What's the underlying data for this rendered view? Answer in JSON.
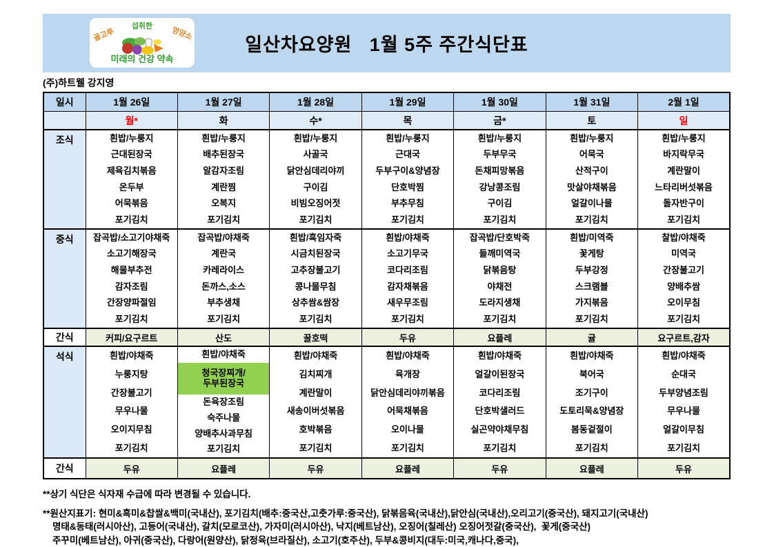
{
  "page": {
    "title": "일산차요양원   1월 5주 주간식단표",
    "subtitle": "(주)하트웰 강지영"
  },
  "logo": {
    "arc_left": "골고루",
    "arc_top": "섭취한",
    "arc_right": "영양소",
    "bottom": "미래의 건강 약속"
  },
  "colors": {
    "band": "#BDD7EE",
    "daybg": "#DEEBF7",
    "labelbg": "#DCE9F6",
    "snackbg": "#EBF1DE",
    "hl": "#92D050",
    "red": "#FF0000"
  },
  "table": {
    "corner_label": "일시",
    "dates": [
      "1월 26일",
      "1월 27일",
      "1월 28일",
      "1월 29일",
      "1월 30일",
      "1월 31일",
      "2월 1일"
    ],
    "days": [
      {
        "label": "월*",
        "red": true
      },
      {
        "label": "화",
        "red": false
      },
      {
        "label": "수*",
        "red": false
      },
      {
        "label": "목",
        "red": false
      },
      {
        "label": "금*",
        "red": false
      },
      {
        "label": "토",
        "red": false
      },
      {
        "label": "일",
        "red": true
      }
    ],
    "sections": [
      {
        "key": "breakfast",
        "label": "조식",
        "type": "meal",
        "days": [
          [
            "흰밥/누룽지",
            "근대된장국",
            "제육김치볶음",
            "온두부",
            "어묵볶음",
            "포기김치"
          ],
          [
            "흰밥/누룽지",
            "배추된장국",
            "알감자조림",
            "계란찜",
            "오복지",
            "포기김치"
          ],
          [
            "흰밥/누룽지",
            "사골국",
            "닭안심데리야끼",
            "구이김",
            "비빔오징어젓",
            "포기김치"
          ],
          [
            "흰밥/누룽지",
            "근대국",
            "두부구이&양념장",
            "단호박찜",
            "부추무침",
            "포기김치"
          ],
          [
            "흰밥/누룽지",
            "두부무국",
            "돈채피망볶음",
            "강낭콩조림",
            "구이김",
            "포기김치"
          ],
          [
            "흰밥/누룽지",
            "어묵국",
            "산적구이",
            "맛살야채볶음",
            "얼갈이나물",
            "포기김치"
          ],
          [
            "흰밥/누룽지",
            "바지락무국",
            "계란말이",
            "느타리버섯볶음",
            "돌자반구이",
            "포기김치"
          ]
        ]
      },
      {
        "key": "lunch",
        "label": "중식",
        "type": "meal",
        "days": [
          [
            "잡곡밥/소고기야채죽",
            "소고기해장국",
            "해물부추전",
            "감자조림",
            "간장양파절임",
            "포기김치"
          ],
          [
            "잡곡밥/야채죽",
            "계란국",
            "카레라이스",
            "돈까스,소스",
            "부추생채",
            "포기김치"
          ],
          [
            "흰밥/흑임자죽",
            "시금치된장국",
            "고추장불고기",
            "콩나물무침",
            "상추쌈&쌈장",
            "포기김치"
          ],
          [
            "흰밥/야채죽",
            "소고기무국",
            "코다리조림",
            "감자채볶음",
            "새우무조림",
            "포기김치"
          ],
          [
            "잡곡밥/단호박죽",
            "들깨미역국",
            "닭볶음탕",
            "야채전",
            "도라지생채",
            "포기김치"
          ],
          [
            "흰밥/미역죽",
            "꽃게탕",
            "두부강정",
            "스크램블",
            "가지볶음",
            "포기김치"
          ],
          [
            "찰밥/야채죽",
            "미역국",
            "간장불고기",
            "양배추쌈",
            "오이무침",
            "포기김치"
          ]
        ]
      },
      {
        "key": "snack-afternoon",
        "label": "간식",
        "type": "snack",
        "days": [
          "커피/요구르트",
          "산도",
          "꿀호떡",
          "두유",
          "요플레",
          "귤",
          "요구르트,감자"
        ]
      },
      {
        "key": "dinner",
        "label": "석식",
        "type": "meal",
        "days": [
          [
            "흰밥/야채죽",
            "누룽지탕",
            "간장불고기",
            "무우나물",
            "오이지무침",
            "포기김치"
          ],
          [
            "흰밥/야채죽",
            {
              "lines": [
                "청국장찌개/",
                "두부된장국"
              ],
              "highlight": true
            },
            "돈육장조림",
            "숙주나물",
            "양배추사과무침",
            "포기김치"
          ],
          [
            "흰밥/야채죽",
            "김치찌개",
            "계란말이",
            "새송이버섯볶음",
            "호박볶음",
            "포기김치"
          ],
          [
            "흰밥/야채죽",
            "육개장",
            "닭안심데리야끼볶음",
            "어묵채볶음",
            "오이나물",
            "포기김치"
          ],
          [
            "흰밥/야채죽",
            "얼갈이된장국",
            "코다리조림",
            "단호박샐러드",
            "실곤약야채무침",
            "포기김치"
          ],
          [
            "흰밥/야채죽",
            "북어국",
            "조기구이",
            "도토리묵&양념장",
            "봄동겉절이",
            "포기김치"
          ],
          [
            "흰밥/야채죽",
            "순대국",
            "두부양념조림",
            "무우나물",
            "얼갈이무침",
            "포기김치"
          ]
        ]
      },
      {
        "key": "snack-evening",
        "label": "간식",
        "type": "snack",
        "days": [
          "두유",
          "요플레",
          "두유",
          "요플레",
          "두유",
          "요플레",
          "두유"
        ]
      }
    ]
  },
  "footnotes": [
    "**상기 식단은 식자재 수급에 따라 변경될 수 있습니다.",
    "**원산지표기: 현미&흑미&찹쌀&백미(국내산), 포기김치(배추:중국산,고춧가루:중국산), 닭볶음육(국내산),닭안심(국내산),오리고기(중국산), 돼지고기(국내산)",
    "명태&동태(러시아산), 고등어(국내산), 갈치(모로코산), 가자미(러시아산), 낙지(베트남산), 오징어(칠레산) 오징어젓갈(중국산),  꽃게(중국산)",
    "주꾸미(베트남산), 아귀(중국산), 다랑어(원양산), 닭정육(브라질산), 소고기(호주산), 두부&콩비지(대두:미국,캐나다,중국),"
  ]
}
